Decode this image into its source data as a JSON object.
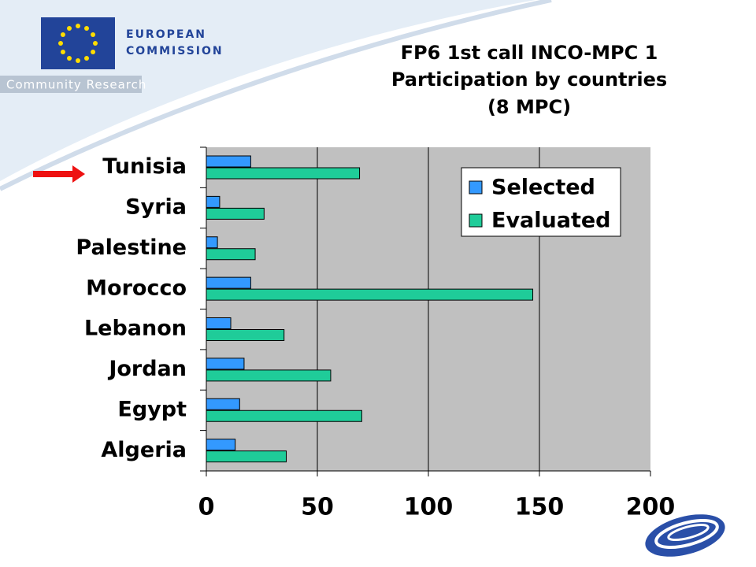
{
  "header": {
    "org": [
      "EUROPEAN",
      "COMMISSION"
    ],
    "program": "Community Research"
  },
  "chart_data": {
    "type": "barh",
    "title": [
      "FP6 1st call INCO-MPC 1",
      "Participation by countries",
      "(8 MPC)"
    ],
    "categories": [
      "Tunisia",
      "Syria",
      "Palestine",
      "Morocco",
      "Lebanon",
      "Jordan",
      "Egypt",
      "Algeria"
    ],
    "series": [
      {
        "name": "Selected",
        "color": "#3399ff",
        "values": [
          20,
          6,
          5,
          20,
          11,
          17,
          15,
          13
        ]
      },
      {
        "name": "Evaluated",
        "color": "#1fcc99",
        "values": [
          69,
          26,
          22,
          147,
          35,
          56,
          70,
          36
        ]
      }
    ],
    "xlim": [
      0,
      200
    ],
    "xticks": [
      0,
      50,
      100,
      150,
      200
    ],
    "grid": true,
    "legend": "upper right"
  }
}
